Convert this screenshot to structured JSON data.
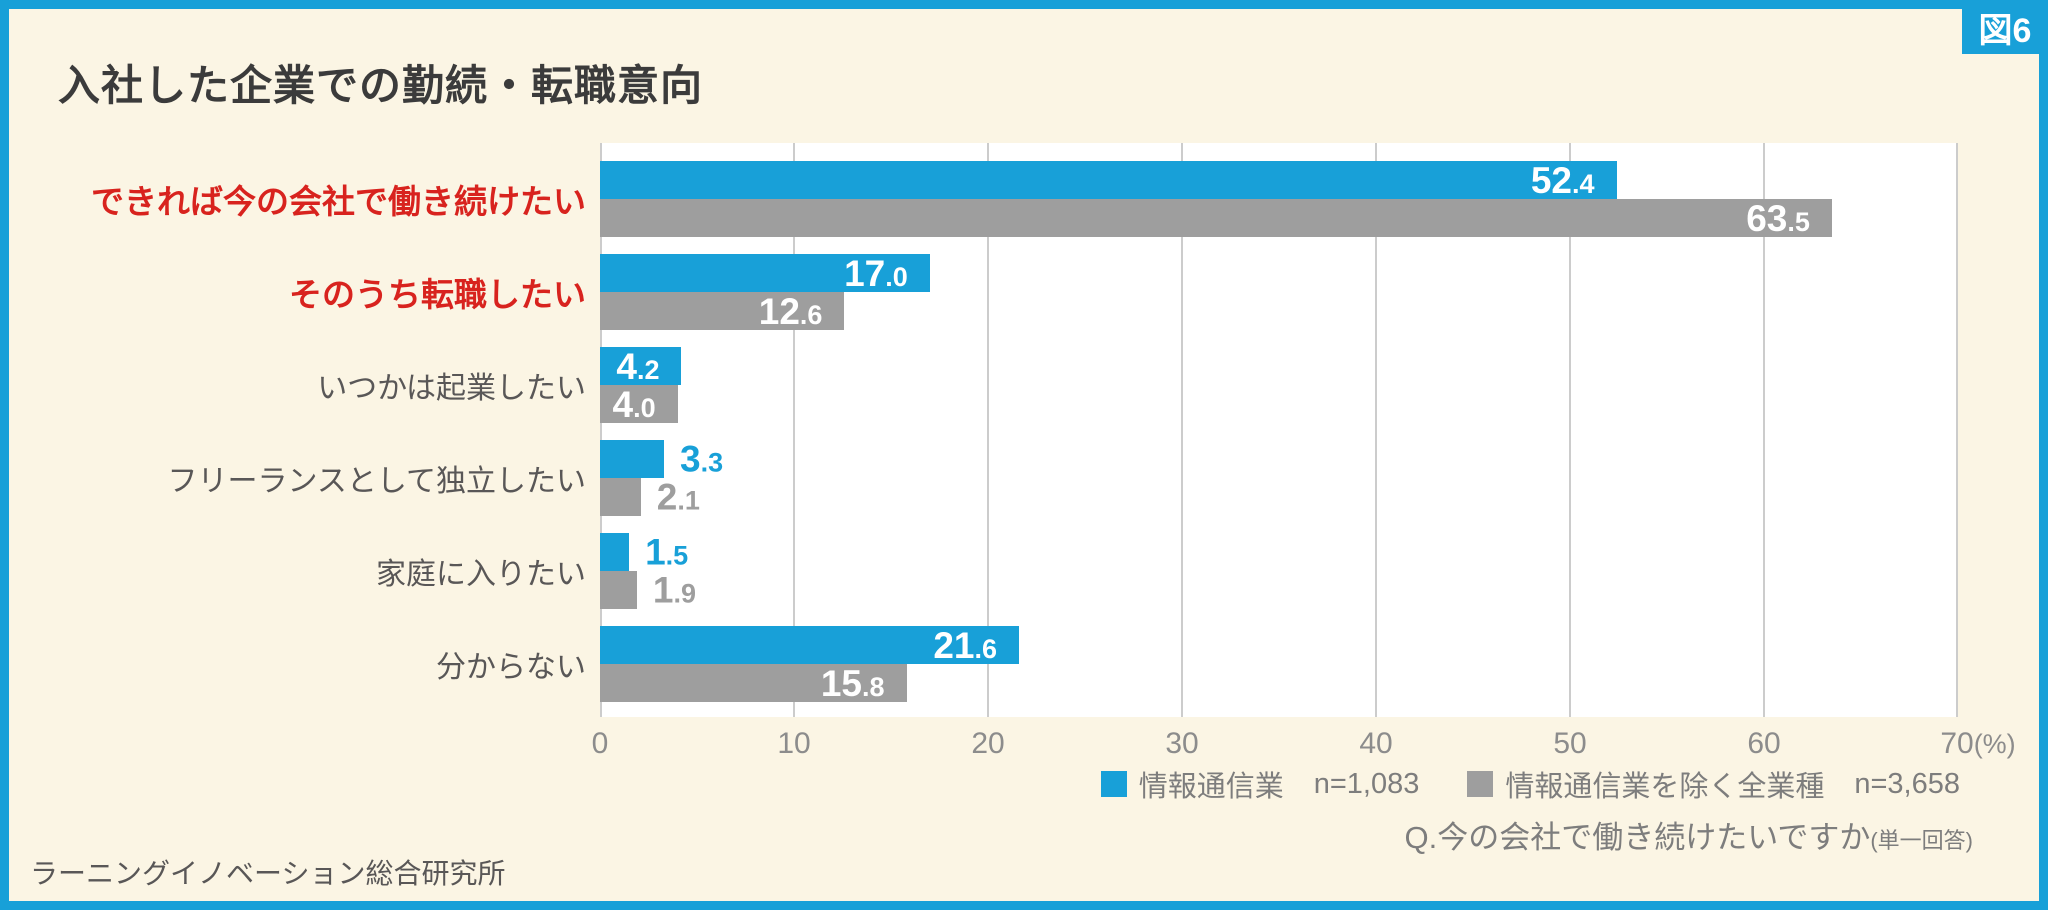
{
  "badge": "図6",
  "title": "入社した企業での勤続・転職意向",
  "question": {
    "main": "Q.今の会社で働き続けたいですか",
    "suffix": "(単一回答)"
  },
  "footer": "ラーニングイノベーション総合研究所",
  "colors": {
    "frame": "#18a0d8",
    "background": "#fbf5e4",
    "plot_background": "#ffffff",
    "gridline": "#cccccc",
    "emphasis_label": "#d8231e",
    "category_label": "#595757",
    "axis_text": "#8c8c8c",
    "title_text": "#3b3b3b",
    "note_text": "#7d7d7d",
    "bar_value_inside": "#ffffff"
  },
  "chart_data": {
    "type": "bar",
    "orientation": "horizontal",
    "title": "入社した企業での勤続・転職意向",
    "categories": [
      "できれば今の会社で働き続けたい",
      "そのうち転職したい",
      "いつかは起業したい",
      "フリーランスとして独立したい",
      "家庭に入りたい",
      "分からない"
    ],
    "emphasis": [
      true,
      true,
      false,
      false,
      false,
      false
    ],
    "series": [
      {
        "name": "情報通信業",
        "n": "n=1,083",
        "color": "#18a0d8",
        "values": [
          52.4,
          17.0,
          4.2,
          3.3,
          1.5,
          21.6
        ]
      },
      {
        "name": "情報通信業を除く全業種",
        "n": "n=3,658",
        "color": "#9e9e9e",
        "values": [
          63.5,
          12.6,
          4.0,
          2.1,
          1.9,
          15.8
        ]
      }
    ],
    "xlim": [
      0,
      70
    ],
    "ticks": [
      0,
      10,
      20,
      30,
      40,
      50,
      60,
      70
    ],
    "x_unit": "(%)",
    "grid": true,
    "legend_position": "bottom-right"
  }
}
